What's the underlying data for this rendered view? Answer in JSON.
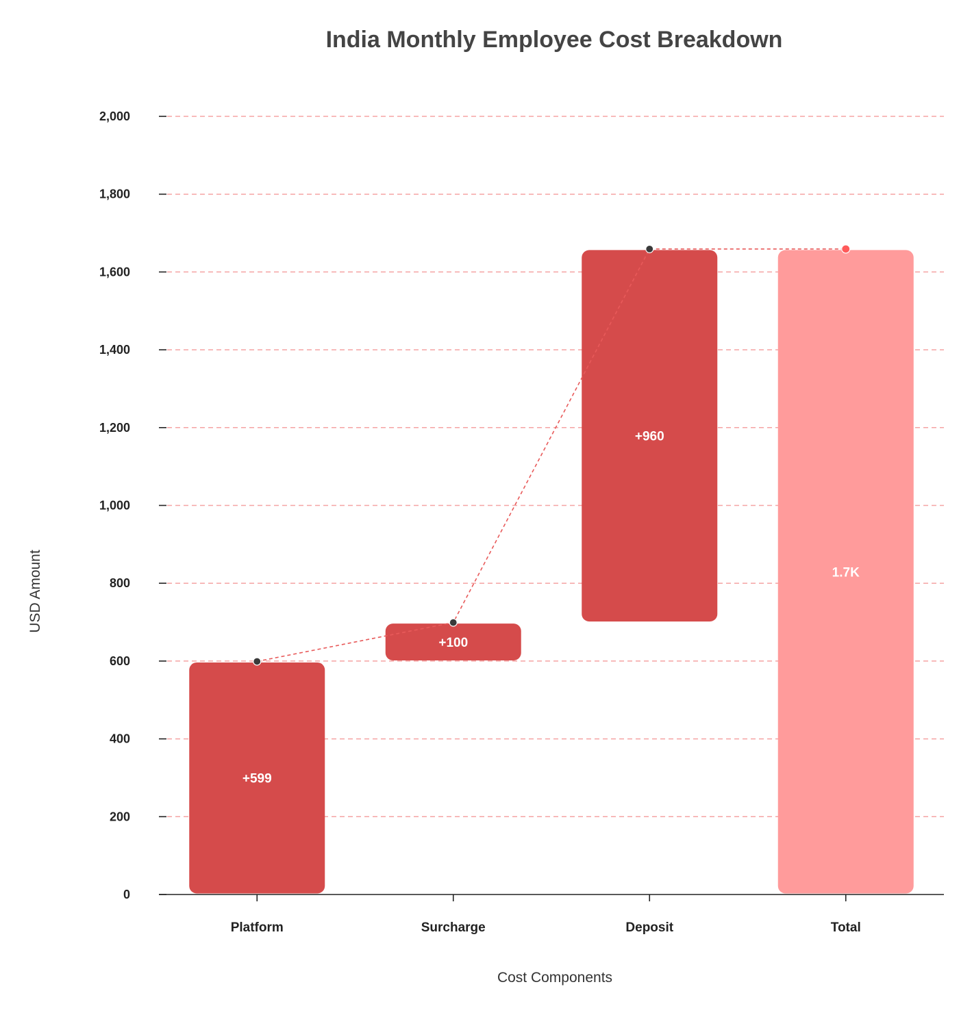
{
  "chart_data": {
    "type": "waterfall",
    "title": "India Monthly Employee Cost Breakdown",
    "xlabel": "Cost Components",
    "ylabel": "USD Amount",
    "ylim": [
      0,
      2000
    ],
    "yticks": [
      0,
      200,
      400,
      600,
      800,
      1000,
      1200,
      1400,
      1600,
      1800,
      2000
    ],
    "ytick_labels": [
      "0",
      "200",
      "400",
      "600",
      "800",
      "1,000",
      "1,200",
      "1,400",
      "1,600",
      "1,800",
      "2,000"
    ],
    "categories": [
      "Platform",
      "Surcharge",
      "Deposit",
      "Total"
    ],
    "bars": [
      {
        "category": "Platform",
        "value": 599,
        "start": 0,
        "end": 599,
        "label": "+599",
        "kind": "increase"
      },
      {
        "category": "Surcharge",
        "value": 100,
        "start": 599,
        "end": 699,
        "label": "+100",
        "kind": "increase"
      },
      {
        "category": "Deposit",
        "value": 960,
        "start": 699,
        "end": 1659,
        "label": "+960",
        "kind": "increase"
      },
      {
        "category": "Total",
        "value": 1659,
        "start": 0,
        "end": 1659,
        "label": "1.7K",
        "kind": "total"
      }
    ],
    "grid": true,
    "grid_style": "dashed",
    "connector_line": "dashed",
    "colors": {
      "increase": "#d54b4b",
      "total": "#ff9b9b",
      "grid": "#f5a3a3",
      "connector": "#e85a5a",
      "marker": "#3a3a3a",
      "total_marker": "#ff5a5a"
    }
  }
}
